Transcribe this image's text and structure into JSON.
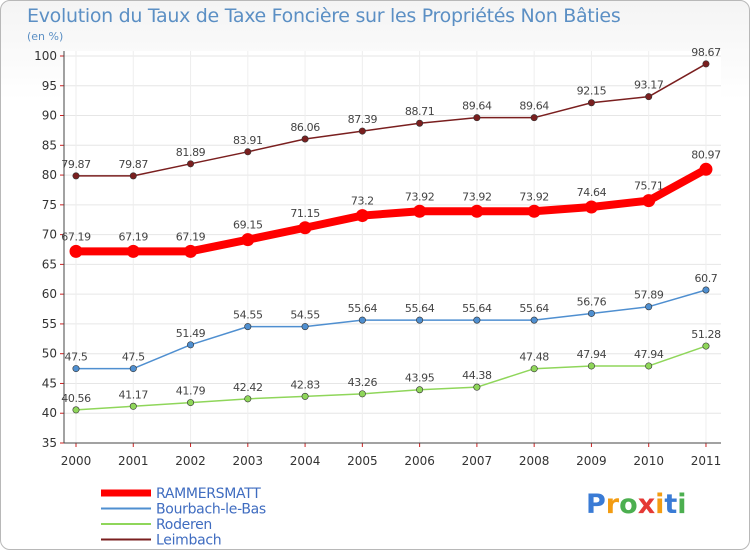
{
  "title": "Evolution du Taux de Taxe Foncière sur les Propriétés Non Bâties",
  "unit": "(en %)",
  "logo": "Proxiti",
  "chart_data": {
    "type": "line",
    "title": "Evolution du Taux de Taxe Foncière sur les Propriétés Non Bâties",
    "ylabel": "(en %)",
    "xlabel": "",
    "x": [
      "2000",
      "2001",
      "2002",
      "2003",
      "2004",
      "2005",
      "2006",
      "2007",
      "2008",
      "2009",
      "2010",
      "2011"
    ],
    "ylim": [
      35,
      100
    ],
    "yticks": [
      35,
      40,
      45,
      50,
      55,
      60,
      65,
      70,
      75,
      80,
      85,
      90,
      95,
      100
    ],
    "grid": true,
    "legend": "bottom-left",
    "series": [
      {
        "name": "RAMMERSMATT",
        "color": "#ff0000",
        "values": [
          67.19,
          67.19,
          67.19,
          69.15,
          71.15,
          73.2,
          73.92,
          73.92,
          73.92,
          74.64,
          75.71,
          80.97
        ],
        "labels": [
          "67.19",
          "67.19",
          "67.19",
          "69.15",
          "71.15",
          "73.2",
          "73.92",
          "73.92",
          "73.92",
          "74.64",
          "75.71",
          "80.97"
        ]
      },
      {
        "name": "Bourbach-le-Bas",
        "color": "#4f8fd0",
        "values": [
          47.5,
          47.5,
          51.49,
          54.55,
          54.55,
          55.64,
          55.64,
          55.64,
          55.64,
          56.76,
          57.89,
          60.7
        ],
        "labels": [
          "47.5",
          "47.5",
          "51.49",
          "54.55",
          "54.55",
          "55.64",
          "55.64",
          "55.64",
          "55.64",
          "56.76",
          "57.89",
          "60.7"
        ]
      },
      {
        "name": "Roderen",
        "color": "#8fd65a",
        "values": [
          40.56,
          41.17,
          41.79,
          42.42,
          42.83,
          43.26,
          43.95,
          44.38,
          47.48,
          47.94,
          47.94,
          51.28
        ],
        "labels": [
          "40.56",
          "41.17",
          "41.79",
          "42.42",
          "42.83",
          "43.26",
          "43.95",
          "44.38",
          "47.48",
          "47.94",
          "47.94",
          "51.28"
        ]
      },
      {
        "name": "Leimbach",
        "color": "#7a1f1f",
        "values": [
          79.87,
          79.87,
          81.89,
          83.91,
          86.06,
          87.39,
          88.71,
          89.64,
          89.64,
          92.15,
          93.17,
          98.67
        ],
        "labels": [
          "79.87",
          "79.87",
          "81.89",
          "83.91",
          "86.06",
          "87.39",
          "88.71",
          "89.64",
          "89.64",
          "92.15",
          "93.17",
          "98.67"
        ]
      }
    ]
  }
}
